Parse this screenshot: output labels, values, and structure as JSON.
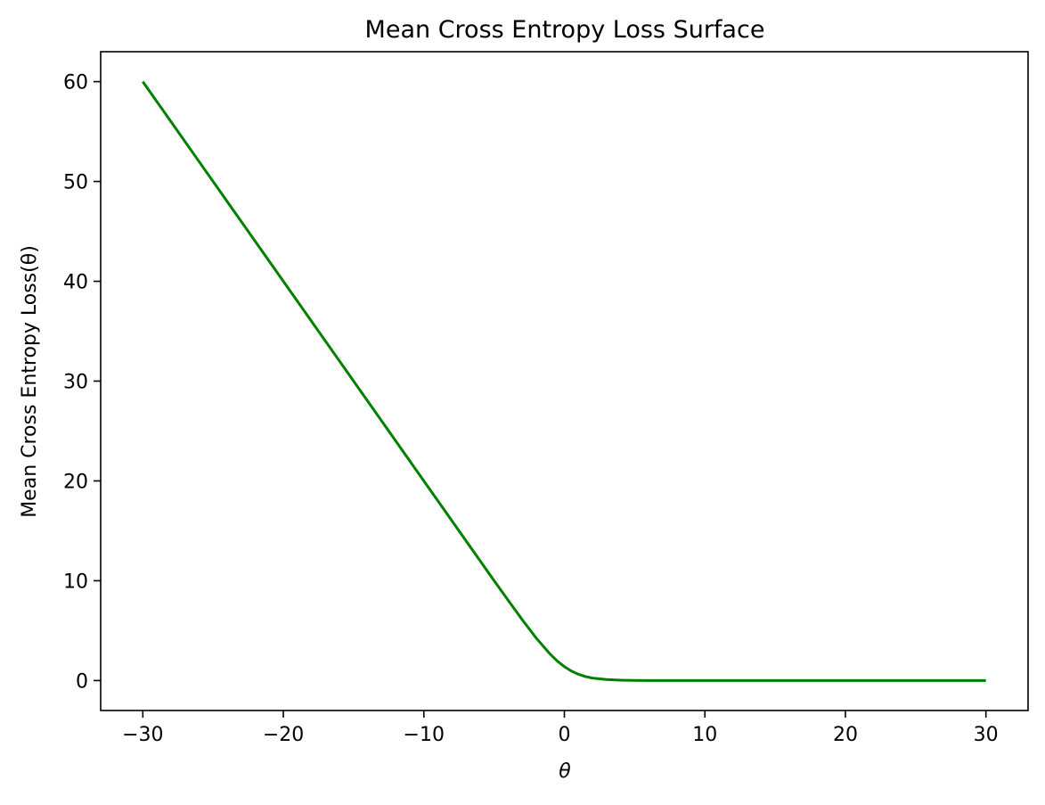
{
  "chart_data": {
    "type": "line",
    "title": "Mean Cross Entropy Loss Surface",
    "xlabel": "θ",
    "ylabel": "Mean Cross Entropy Loss(θ)",
    "xlim": [
      -33,
      33
    ],
    "ylim": [
      -3,
      63
    ],
    "xticks": [
      -30,
      -20,
      -10,
      0,
      10,
      20,
      30
    ],
    "yticks": [
      0,
      10,
      20,
      30,
      40,
      50,
      60
    ],
    "xtick_labels": [
      "−30",
      "−20",
      "−10",
      "0",
      "10",
      "20",
      "30"
    ],
    "ytick_labels": [
      "0",
      "10",
      "20",
      "30",
      "40",
      "50",
      "60"
    ],
    "grid": false,
    "series": [
      {
        "color": "#008000",
        "x": [
          -30,
          -25,
          -20,
          -15,
          -10,
          -8,
          -6,
          -5,
          -4,
          -3,
          -2,
          -1,
          -0.5,
          0,
          0.5,
          1,
          1.5,
          2,
          3,
          4,
          5,
          6,
          8,
          10,
          15,
          20,
          25,
          30
        ],
        "y": [
          60.0,
          50.0,
          40.0,
          30.0,
          20.0,
          16.0,
          12.0,
          10.01,
          8.04,
          6.1,
          4.25,
          2.63,
          1.95,
          1.39,
          0.95,
          0.63,
          0.4,
          0.25,
          0.1,
          0.04,
          0.01,
          0.005,
          0.0,
          0.0,
          0.0,
          0.0,
          0.0,
          0.0
        ]
      }
    ]
  }
}
